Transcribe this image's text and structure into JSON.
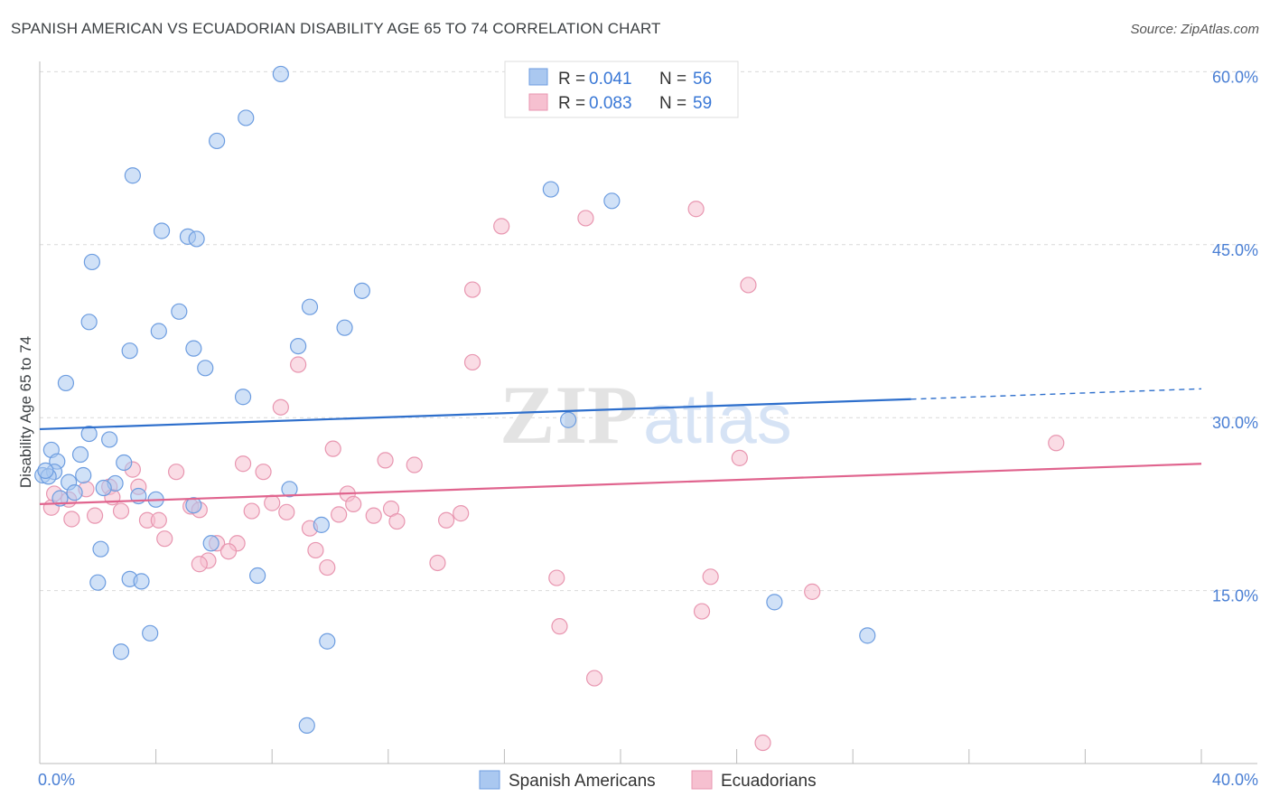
{
  "title": "SPANISH AMERICAN VS ECUADORIAN DISABILITY AGE 65 TO 74 CORRELATION CHART",
  "source": "Source: ZipAtlas.com",
  "watermark": {
    "zip": "ZIP",
    "atlas": "atlas"
  },
  "colors": {
    "blue_fill": "#aac8f0",
    "blue_stroke": "#6d9de0",
    "blue_line": "#2e6fcc",
    "pink_fill": "#f6c0d0",
    "pink_stroke": "#e896b0",
    "pink_line": "#e0648e",
    "tick_text": "#4a7fd4",
    "grid": "#d9d9d9"
  },
  "legend": {
    "rows": [
      {
        "r_label": "R =",
        "r_value": "0.041",
        "n_label": "N =",
        "n_value": "56"
      },
      {
        "r_label": "R =",
        "r_value": "0.083",
        "n_label": "N =",
        "n_value": "59"
      }
    ]
  },
  "bottom_legend": [
    "Spanish Americans",
    "Ecuadorians"
  ],
  "chart_data": {
    "type": "scatter",
    "title": "SPANISH AMERICAN VS ECUADORIAN DISABILITY AGE 65 TO 74 CORRELATION CHART",
    "xlabel": "",
    "ylabel": "Disability Age 65 to 74",
    "xlim": [
      0,
      40
    ],
    "ylim": [
      0,
      63
    ],
    "x_tick_labels": [
      {
        "value": 0,
        "label": "0.0%"
      },
      {
        "value": 40,
        "label": "40.0%"
      }
    ],
    "y_tick_labels": [
      {
        "value": 15,
        "label": "15.0%"
      },
      {
        "value": 30,
        "label": "30.0%"
      },
      {
        "value": 45,
        "label": "45.0%"
      },
      {
        "value": 60,
        "label": "60.0%"
      }
    ],
    "series": [
      {
        "name": "Spanish Americans",
        "R": 0.041,
        "N": 56,
        "trend": {
          "x0": 0,
          "y0": 29.0,
          "x1": 30.0,
          "y1": 31.6,
          "dashed_to_x": 40.0,
          "dashed_to_y": 32.5
        },
        "points": [
          [
            8.3,
            59.8
          ],
          [
            7.1,
            56.0
          ],
          [
            6.1,
            54.0
          ],
          [
            3.2,
            51.0
          ],
          [
            17.6,
            49.8
          ],
          [
            19.7,
            48.8
          ],
          [
            4.2,
            46.2
          ],
          [
            5.1,
            45.7
          ],
          [
            5.4,
            45.5
          ],
          [
            1.8,
            43.5
          ],
          [
            11.1,
            41.0
          ],
          [
            9.3,
            39.6
          ],
          [
            4.8,
            39.2
          ],
          [
            1.7,
            38.3
          ],
          [
            10.5,
            37.8
          ],
          [
            4.1,
            37.5
          ],
          [
            8.9,
            36.2
          ],
          [
            5.3,
            36.0
          ],
          [
            3.1,
            35.8
          ],
          [
            5.7,
            34.3
          ],
          [
            0.9,
            33.0
          ],
          [
            7.0,
            31.8
          ],
          [
            18.2,
            29.8
          ],
          [
            1.7,
            28.6
          ],
          [
            2.4,
            28.1
          ],
          [
            0.4,
            27.2
          ],
          [
            1.4,
            26.8
          ],
          [
            0.6,
            26.2
          ],
          [
            2.9,
            26.1
          ],
          [
            0.1,
            25.0
          ],
          [
            0.5,
            25.3
          ],
          [
            1.5,
            25.0
          ],
          [
            1.0,
            24.4
          ],
          [
            2.6,
            24.3
          ],
          [
            0.3,
            24.9
          ],
          [
            2.2,
            23.9
          ],
          [
            1.2,
            23.5
          ],
          [
            0.7,
            23.0
          ],
          [
            8.6,
            23.8
          ],
          [
            3.4,
            23.2
          ],
          [
            4.0,
            22.9
          ],
          [
            5.3,
            22.4
          ],
          [
            9.7,
            20.7
          ],
          [
            5.9,
            19.1
          ],
          [
            2.1,
            18.6
          ],
          [
            7.5,
            16.3
          ],
          [
            3.1,
            16.0
          ],
          [
            3.5,
            15.8
          ],
          [
            2.0,
            15.7
          ],
          [
            25.3,
            14.0
          ],
          [
            3.8,
            11.3
          ],
          [
            28.5,
            11.1
          ],
          [
            9.9,
            10.6
          ],
          [
            2.8,
            9.7
          ],
          [
            9.2,
            3.3
          ],
          [
            0.2,
            25.4
          ]
        ]
      },
      {
        "name": "Ecuadorians",
        "R": 0.083,
        "N": 59,
        "trend": {
          "x0": 0,
          "y0": 22.5,
          "x1": 40.0,
          "y1": 26.0
        },
        "points": [
          [
            22.6,
            48.1
          ],
          [
            18.8,
            47.3
          ],
          [
            15.9,
            46.6
          ],
          [
            24.4,
            41.5
          ],
          [
            14.9,
            41.1
          ],
          [
            8.9,
            34.6
          ],
          [
            14.9,
            34.8
          ],
          [
            8.3,
            30.9
          ],
          [
            35.0,
            27.8
          ],
          [
            10.1,
            27.3
          ],
          [
            24.1,
            26.5
          ],
          [
            11.9,
            26.3
          ],
          [
            7.0,
            26.0
          ],
          [
            12.9,
            25.9
          ],
          [
            3.2,
            25.5
          ],
          [
            4.7,
            25.3
          ],
          [
            7.7,
            25.3
          ],
          [
            2.4,
            24.0
          ],
          [
            3.4,
            24.0
          ],
          [
            1.6,
            23.8
          ],
          [
            1.0,
            22.9
          ],
          [
            2.5,
            23.1
          ],
          [
            10.6,
            23.4
          ],
          [
            8.0,
            22.6
          ],
          [
            10.8,
            22.5
          ],
          [
            12.1,
            22.1
          ],
          [
            0.4,
            22.2
          ],
          [
            5.2,
            22.3
          ],
          [
            5.5,
            22.0
          ],
          [
            2.8,
            21.9
          ],
          [
            7.3,
            21.9
          ],
          [
            8.5,
            21.8
          ],
          [
            10.3,
            21.6
          ],
          [
            11.5,
            21.5
          ],
          [
            1.9,
            21.5
          ],
          [
            1.1,
            21.2
          ],
          [
            14.5,
            21.7
          ],
          [
            3.7,
            21.1
          ],
          [
            4.1,
            21.1
          ],
          [
            14.0,
            21.1
          ],
          [
            12.3,
            21.0
          ],
          [
            9.3,
            20.4
          ],
          [
            4.3,
            19.5
          ],
          [
            6.8,
            19.1
          ],
          [
            6.1,
            19.1
          ],
          [
            6.5,
            18.4
          ],
          [
            9.5,
            18.5
          ],
          [
            5.8,
            17.6
          ],
          [
            5.5,
            17.3
          ],
          [
            13.7,
            17.4
          ],
          [
            9.9,
            17.0
          ],
          [
            17.8,
            16.1
          ],
          [
            23.1,
            16.2
          ],
          [
            26.6,
            14.9
          ],
          [
            22.8,
            13.2
          ],
          [
            17.9,
            11.9
          ],
          [
            19.1,
            7.4
          ],
          [
            24.9,
            1.8
          ],
          [
            0.5,
            23.4
          ]
        ]
      }
    ]
  }
}
